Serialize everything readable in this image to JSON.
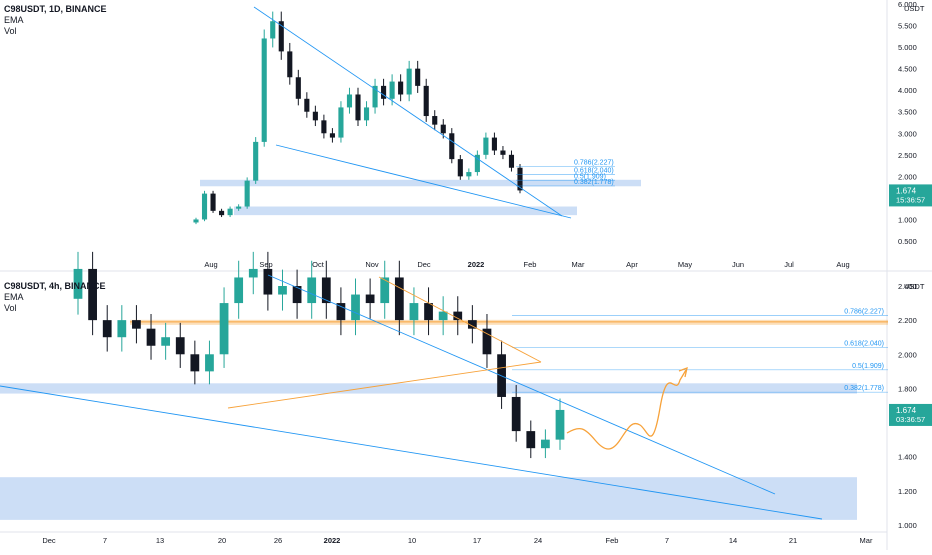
{
  "top_panel": {
    "symbol": "C98USDT, 1D, BINANCE",
    "indicators": [
      "EMA",
      "Vol"
    ],
    "axis_currency": "USDT",
    "price_badge": "1.674",
    "countdown": "15:36:57"
  },
  "bottom_panel": {
    "symbol": "C98USDT, 4h, BINANCE",
    "indicators": [
      "EMA",
      "Vol"
    ],
    "axis_currency": "USDT",
    "price_badge": "1.674",
    "countdown": "03:36:57"
  },
  "colors": {
    "up": "#26a69a",
    "down": "#131722",
    "trendline": "#2196f3",
    "zone": "#bbd3f3",
    "orange": "#f7a23a",
    "fib": "#2196f3",
    "badge": "#26a69a"
  },
  "chart_data": [
    {
      "type": "candlestick",
      "title": "C98USDT, 1D, BINANCE",
      "ylabel": "USDT",
      "y_ticks": [
        "6.000",
        "5.500",
        "5.000",
        "4.500",
        "4.000",
        "3.500",
        "3.000",
        "2.500",
        "2.000",
        "1.500",
        "1.000",
        "0.500"
      ],
      "x_ticks": [
        "Aug",
        "Sep",
        "Oct",
        "Nov",
        "Dec",
        "2022",
        "Feb",
        "Mar",
        "Apr",
        "May",
        "Jun",
        "Jul",
        "Aug"
      ],
      "ylim": [
        0.1,
        6.5
      ],
      "last_price": 1.674,
      "fib_levels": [
        {
          "label": "0.786(2.227)",
          "value": 2.227
        },
        {
          "label": "0.618(2.040)",
          "value": 2.04
        },
        {
          "label": "0.5(1.909)",
          "value": 1.909
        },
        {
          "label": "0.382(1.778)",
          "value": 1.778
        }
      ],
      "series_close": [
        1.0,
        1.6,
        1.2,
        1.1,
        1.25,
        1.3,
        1.9,
        2.8,
        5.2,
        5.6,
        4.9,
        4.3,
        3.8,
        3.5,
        3.3,
        3.0,
        2.9,
        3.6,
        3.9,
        3.3,
        3.6,
        4.1,
        3.8,
        4.2,
        3.9,
        4.5,
        4.1,
        3.4,
        3.2,
        3.0,
        2.4,
        2.0,
        2.1,
        2.5,
        2.9,
        2.6,
        2.5,
        2.2,
        1.674
      ],
      "zones": [
        {
          "from": 1.77,
          "to": 1.92
        },
        {
          "from": 1.1,
          "to": 1.3
        }
      ]
    },
    {
      "type": "candlestick",
      "title": "C98USDT, 4h, BINANCE",
      "ylabel": "USDT",
      "y_ticks": [
        "2.400",
        "2.200",
        "2.000",
        "1.800",
        "1.600",
        "1.400",
        "1.200",
        "1.000"
      ],
      "x_ticks": [
        "Dec",
        "7",
        "13",
        "20",
        "26",
        "2022",
        "10",
        "17",
        "24",
        "Feb",
        "7",
        "14",
        "21",
        "Mar"
      ],
      "ylim": [
        0.95,
        2.52
      ],
      "last_price": 1.674,
      "fib_levels": [
        {
          "label": "0.786(2.227)",
          "value": 2.227
        },
        {
          "label": "0.618(2.040)",
          "value": 2.04
        },
        {
          "label": "0.5(1.909)",
          "value": 1.909
        },
        {
          "label": "0.382(1.778)",
          "value": 1.778
        }
      ],
      "series_close": [
        2.5,
        2.2,
        2.1,
        2.2,
        2.15,
        2.05,
        2.1,
        2.0,
        1.9,
        2.0,
        2.3,
        2.45,
        2.5,
        2.35,
        2.4,
        2.3,
        2.45,
        2.3,
        2.2,
        2.35,
        2.3,
        2.45,
        2.2,
        2.3,
        2.2,
        2.25,
        2.2,
        2.15,
        2.0,
        1.75,
        1.55,
        1.45,
        1.5,
        1.674
      ],
      "zones": [
        {
          "from": 1.77,
          "to": 1.83
        },
        {
          "from": 1.03,
          "to": 1.28
        }
      ],
      "orange_level": 2.19
    }
  ]
}
